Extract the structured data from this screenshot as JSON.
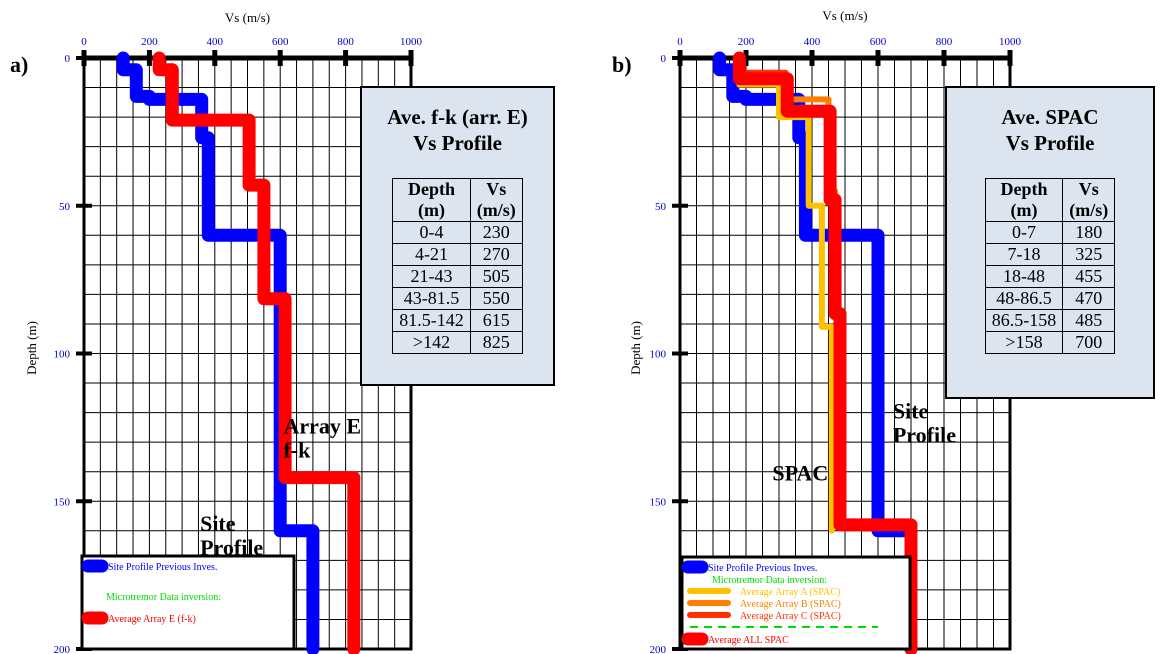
{
  "chart_data": [
    {
      "type": "line",
      "panel_label": "a)",
      "title": "",
      "xlabel": "Vs (m/s)",
      "ylabel": "Depth (m)",
      "xlim": [
        0,
        1000
      ],
      "ylim": [
        0,
        200
      ],
      "x_ticks": [
        0,
        200,
        400,
        600,
        800,
        1000
      ],
      "y_ticks": [
        0,
        50,
        100,
        150,
        200
      ],
      "grid": true,
      "series": [
        {
          "key": "site",
          "color": "#0000ff",
          "width": 13,
          "points": [
            [
              120,
              0
            ],
            [
              120,
              4
            ],
            [
              160,
              4
            ],
            [
              160,
              13
            ],
            [
              180,
              13
            ],
            [
              200,
              13
            ],
            [
              200,
              14
            ],
            [
              360,
              14
            ],
            [
              360,
              27
            ],
            [
              380,
              27
            ],
            [
              380,
              60
            ],
            [
              600,
              60
            ],
            [
              600,
              160
            ],
            [
              700,
              160
            ],
            [
              700,
              200
            ]
          ]
        },
        {
          "key": "fk",
          "color": "#ff0000",
          "width": 13,
          "points": [
            [
              230,
              0
            ],
            [
              230,
              4
            ],
            [
              270,
              4
            ],
            [
              270,
              21
            ],
            [
              505,
              21
            ],
            [
              505,
              43
            ],
            [
              550,
              43
            ],
            [
              550,
              81.5
            ],
            [
              615,
              81.5
            ],
            [
              615,
              142
            ],
            [
              825,
              142
            ],
            [
              825,
              200
            ]
          ]
        }
      ],
      "annotations": [
        {
          "lines": [
            "Array E",
            "f-k"
          ],
          "x": 610,
          "y": 127
        },
        {
          "lines": [
            "Site",
            "Profile"
          ],
          "x": 355,
          "y": 160
        }
      ],
      "table": {
        "title_lines": [
          "Ave. f-k (arr. E)",
          "Vs Profile"
        ],
        "headers": [
          "Depth\n(m)",
          "Vs\n(m/s)"
        ],
        "rows": [
          [
            "0-4",
            "230"
          ],
          [
            "4-21",
            "270"
          ],
          [
            "21-43",
            "505"
          ],
          [
            "43-81.5",
            "550"
          ],
          [
            "81.5-142",
            "615"
          ],
          [
            ">142",
            "825"
          ]
        ]
      },
      "legend": {
        "placement": "bottom-left",
        "entries": [
          {
            "label": "Site Profile Previous Inves.",
            "color": "#0000ff",
            "kind": "blob"
          },
          {
            "label": "Microtremor Data inversion:",
            "color": "#00dd00",
            "kind": "text"
          },
          {
            "label": "Average Array E (f-k)",
            "color": "#ff0000",
            "kind": "blob"
          }
        ]
      }
    },
    {
      "type": "line",
      "panel_label": "b)",
      "title": "",
      "xlabel": "Vs (m/s)",
      "ylabel": "Depth (m)",
      "xlim": [
        0,
        1000
      ],
      "ylim": [
        0,
        200
      ],
      "x_ticks": [
        0,
        200,
        400,
        600,
        800,
        1000
      ],
      "y_ticks": [
        0,
        50,
        100,
        150,
        200
      ],
      "grid": true,
      "series": [
        {
          "key": "site",
          "color": "#0000ff",
          "width": 13,
          "points": [
            [
              120,
              0
            ],
            [
              120,
              4
            ],
            [
              160,
              4
            ],
            [
              160,
              13
            ],
            [
              200,
              13
            ],
            [
              200,
              14
            ],
            [
              360,
              14
            ],
            [
              360,
              27
            ],
            [
              380,
              27
            ],
            [
              380,
              60
            ],
            [
              600,
              60
            ],
            [
              600,
              160
            ],
            [
              700,
              160
            ],
            [
              700,
              200
            ]
          ]
        },
        {
          "key": "A",
          "color": "#ffc000",
          "width": 6,
          "points": [
            [
              180,
              0
            ],
            [
              180,
              9
            ],
            [
              300,
              9
            ],
            [
              300,
              20
            ],
            [
              390,
              20
            ],
            [
              390,
              50
            ],
            [
              430,
              50
            ],
            [
              430,
              91
            ],
            [
              460,
              91
            ],
            [
              460,
              160
            ]
          ]
        },
        {
          "key": "B",
          "color": "#ff8000",
          "width": 6,
          "points": [
            [
              185,
              0
            ],
            [
              185,
              6
            ],
            [
              330,
              6
            ],
            [
              330,
              14
            ],
            [
              450,
              14
            ],
            [
              450,
              45
            ],
            [
              470,
              45
            ],
            [
              470,
              88
            ],
            [
              490,
              88
            ],
            [
              490,
              158
            ]
          ]
        },
        {
          "key": "C",
          "color": "#ff3000",
          "width": 6,
          "points": [
            [
              175,
              0
            ],
            [
              175,
              5
            ],
            [
              320,
              5
            ],
            [
              320,
              17
            ],
            [
              460,
              17
            ],
            [
              460,
              48
            ],
            [
              480,
              48
            ],
            [
              480,
              87
            ],
            [
              485,
              87
            ],
            [
              485,
              158
            ]
          ]
        },
        {
          "key": "all",
          "color": "#ff0000",
          "width": 13,
          "points": [
            [
              180,
              0
            ],
            [
              180,
              7
            ],
            [
              325,
              7
            ],
            [
              325,
              18
            ],
            [
              455,
              18
            ],
            [
              455,
              48
            ],
            [
              470,
              48
            ],
            [
              470,
              86.5
            ],
            [
              485,
              86.5
            ],
            [
              485,
              158
            ],
            [
              700,
              158
            ],
            [
              700,
              200
            ]
          ]
        }
      ],
      "annotations": [
        {
          "lines": [
            "Site",
            "Profile"
          ],
          "x": 645,
          "y": 122
        },
        {
          "lines": [
            "SPAC"
          ],
          "x": 280,
          "y": 143
        }
      ],
      "table": {
        "title_lines": [
          "Ave. SPAC",
          "Vs Profile"
        ],
        "headers": [
          "Depth\n(m)",
          "Vs\n(m/s)"
        ],
        "rows": [
          [
            "0-7",
            "180"
          ],
          [
            "7-18",
            "325"
          ],
          [
            "18-48",
            "455"
          ],
          [
            "48-86.5",
            "470"
          ],
          [
            "86.5-158",
            "485"
          ],
          [
            ">158",
            "700"
          ]
        ]
      },
      "legend": {
        "placement": "bottom-left",
        "entries": [
          {
            "label": "Site Profile Previous Inves.",
            "color": "#0000ff",
            "kind": "blob"
          },
          {
            "label": "Microtremor Data inversion:",
            "color": "#00dd00",
            "kind": "text"
          },
          {
            "label": "Average Array A (SPAC)",
            "color": "#ffc000",
            "kind": "bar"
          },
          {
            "label": "Average Array B (SPAC)",
            "color": "#ff8000",
            "kind": "bar"
          },
          {
            "label": "Average Array C (SPAC)",
            "color": "#ff3000",
            "kind": "bar"
          },
          {
            "label": "",
            "color": "#00dd00",
            "kind": "dash"
          },
          {
            "label": "Average ALL SPAC",
            "color": "#ff0000",
            "kind": "blob"
          }
        ]
      }
    }
  ]
}
